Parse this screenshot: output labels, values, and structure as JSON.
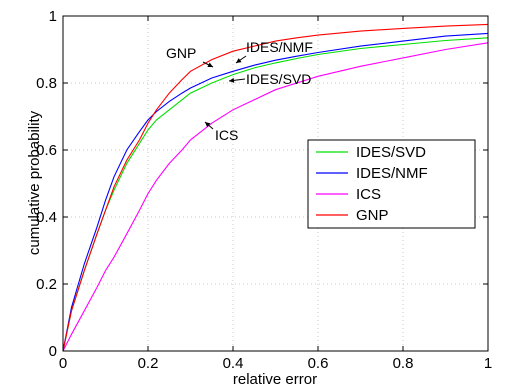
{
  "chart_data": {
    "type": "line",
    "title": "",
    "xlabel": "relative error",
    "ylabel": "cumulative probability",
    "xlim": [
      0,
      1
    ],
    "ylim": [
      0,
      1
    ],
    "xticks": [
      0,
      0.2,
      0.4,
      0.6,
      0.8,
      1
    ],
    "yticks": [
      0,
      0.2,
      0.4,
      0.6,
      0.8,
      1
    ],
    "xtick_labels": [
      "0",
      "0.2",
      "0.4",
      "0.6",
      "0.8",
      "1"
    ],
    "ytick_labels": [
      "0",
      "0.2",
      "0.4",
      "0.6",
      "0.8",
      "1"
    ],
    "grid": true,
    "legend_position": "right",
    "series": [
      {
        "name": "IDES/SVD",
        "color": "#00e000",
        "x": [
          0,
          0.02,
          0.05,
          0.08,
          0.1,
          0.12,
          0.15,
          0.18,
          0.2,
          0.22,
          0.25,
          0.28,
          0.3,
          0.35,
          0.4,
          0.45,
          0.5,
          0.55,
          0.6,
          0.7,
          0.8,
          0.9,
          1.0
        ],
        "y": [
          0,
          0.12,
          0.24,
          0.35,
          0.42,
          0.48,
          0.56,
          0.62,
          0.66,
          0.69,
          0.72,
          0.75,
          0.77,
          0.8,
          0.825,
          0.845,
          0.86,
          0.873,
          0.885,
          0.903,
          0.915,
          0.927,
          0.935
        ]
      },
      {
        "name": "IDES/NMF",
        "color": "#0000ff",
        "x": [
          0,
          0.02,
          0.05,
          0.08,
          0.1,
          0.12,
          0.15,
          0.18,
          0.2,
          0.22,
          0.25,
          0.28,
          0.3,
          0.35,
          0.4,
          0.45,
          0.5,
          0.55,
          0.6,
          0.7,
          0.8,
          0.9,
          1.0
        ],
        "y": [
          0,
          0.13,
          0.26,
          0.37,
          0.45,
          0.52,
          0.6,
          0.655,
          0.69,
          0.715,
          0.745,
          0.77,
          0.785,
          0.815,
          0.835,
          0.853,
          0.868,
          0.88,
          0.891,
          0.91,
          0.925,
          0.94,
          0.948
        ]
      },
      {
        "name": "ICS",
        "color": "#ff00ff",
        "x": [
          0,
          0.02,
          0.05,
          0.08,
          0.1,
          0.12,
          0.15,
          0.18,
          0.2,
          0.22,
          0.25,
          0.28,
          0.3,
          0.35,
          0.4,
          0.45,
          0.5,
          0.55,
          0.6,
          0.7,
          0.8,
          0.9,
          1.0
        ],
        "y": [
          0,
          0.05,
          0.12,
          0.19,
          0.24,
          0.28,
          0.35,
          0.42,
          0.47,
          0.51,
          0.56,
          0.6,
          0.63,
          0.68,
          0.72,
          0.75,
          0.78,
          0.8,
          0.82,
          0.85,
          0.875,
          0.9,
          0.92
        ]
      },
      {
        "name": "GNP",
        "color": "#ff0000",
        "x": [
          0,
          0.02,
          0.05,
          0.08,
          0.1,
          0.12,
          0.15,
          0.18,
          0.2,
          0.22,
          0.25,
          0.28,
          0.3,
          0.35,
          0.4,
          0.45,
          0.5,
          0.55,
          0.6,
          0.7,
          0.8,
          0.9,
          1.0
        ],
        "y": [
          0,
          0.12,
          0.24,
          0.35,
          0.42,
          0.49,
          0.57,
          0.63,
          0.68,
          0.72,
          0.77,
          0.81,
          0.835,
          0.87,
          0.895,
          0.91,
          0.925,
          0.935,
          0.943,
          0.955,
          0.963,
          0.97,
          0.975
        ]
      }
    ],
    "annotations": [
      {
        "text": "GNP",
        "target_series": "GNP",
        "x": 0.34,
        "y": 0.87
      },
      {
        "text": "IDES/NMF",
        "target_series": "IDES/NMF",
        "x": 0.38,
        "y": 0.84
      },
      {
        "text": "IDES/SVD",
        "target_series": "IDES/SVD",
        "x": 0.39,
        "y": 0.815
      },
      {
        "text": "ICS",
        "target_series": "ICS",
        "x": 0.33,
        "y": 0.67
      }
    ]
  }
}
